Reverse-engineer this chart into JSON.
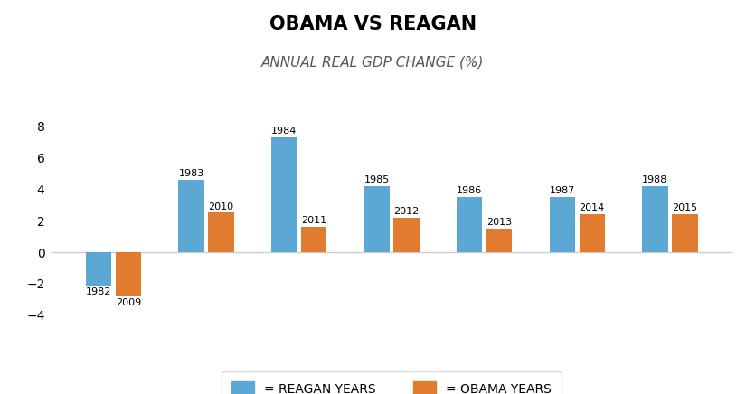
{
  "title": "OBAMA VS REAGAN",
  "subtitle": "ANNUAL REAL GDP CHANGE (%)",
  "reagan_years": [
    1982,
    1983,
    1984,
    1985,
    1986,
    1987,
    1988
  ],
  "obama_years": [
    2009,
    2010,
    2011,
    2012,
    2013,
    2014,
    2015
  ],
  "reagan_values": [
    -2.1,
    4.6,
    7.3,
    4.2,
    3.5,
    3.5,
    4.2
  ],
  "obama_values": [
    -2.8,
    2.5,
    1.6,
    2.2,
    1.5,
    2.4,
    2.4
  ],
  "reagan_color": "#5ba8d4",
  "obama_color": "#e07b30",
  "background_color": "#ffffff",
  "ylim": [
    -4.5,
    9.0
  ],
  "yticks": [
    -4,
    -2,
    0,
    2,
    4,
    6,
    8
  ],
  "bar_width": 0.38,
  "legend_reagan": "= REAGAN YEARS",
  "legend_obama": "= OBAMA YEARS"
}
